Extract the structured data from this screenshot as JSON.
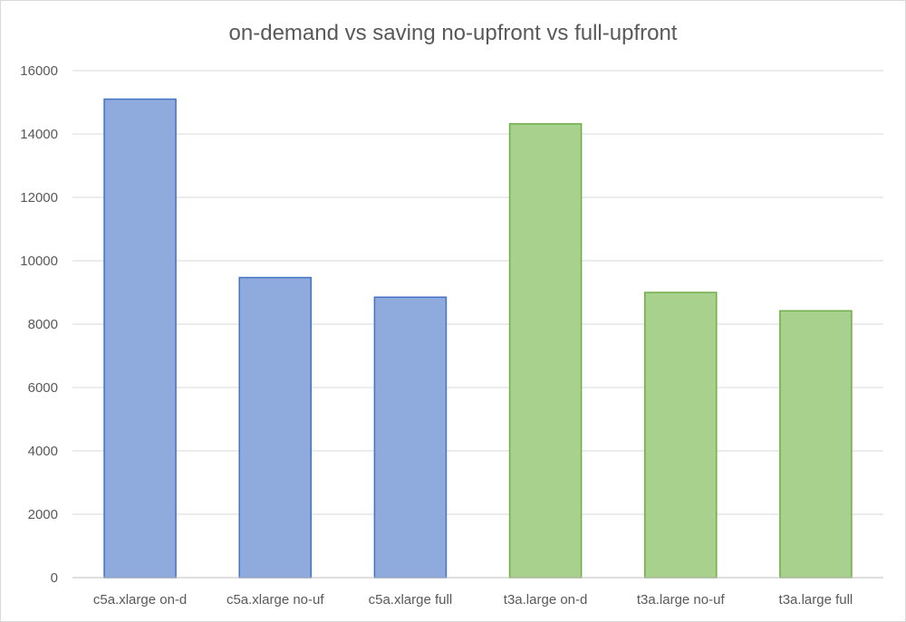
{
  "chart_data": {
    "type": "bar",
    "title": "on-demand vs saving no-upfront vs full-upfront",
    "categories": [
      "c5a.xlarge on-d",
      "c5a.xlarge no-uf",
      "c5a.xlarge full",
      "t3a.large on-d",
      "t3a.large no-uf",
      "t3a.large full"
    ],
    "values": [
      15100,
      9470,
      8850,
      14320,
      9000,
      8420
    ],
    "bar_colors": [
      "#8faadc",
      "#8faadc",
      "#8faadc",
      "#a9d18e",
      "#a9d18e",
      "#a9d18e"
    ],
    "bar_stroke_colors": [
      "#4472c4",
      "#4472c4",
      "#4472c4",
      "#70ad47",
      "#70ad47",
      "#70ad47"
    ],
    "ylim": [
      0,
      16000
    ],
    "yticks": [
      0,
      2000,
      4000,
      6000,
      8000,
      10000,
      12000,
      14000,
      16000
    ],
    "grid": true,
    "legend": "none"
  }
}
